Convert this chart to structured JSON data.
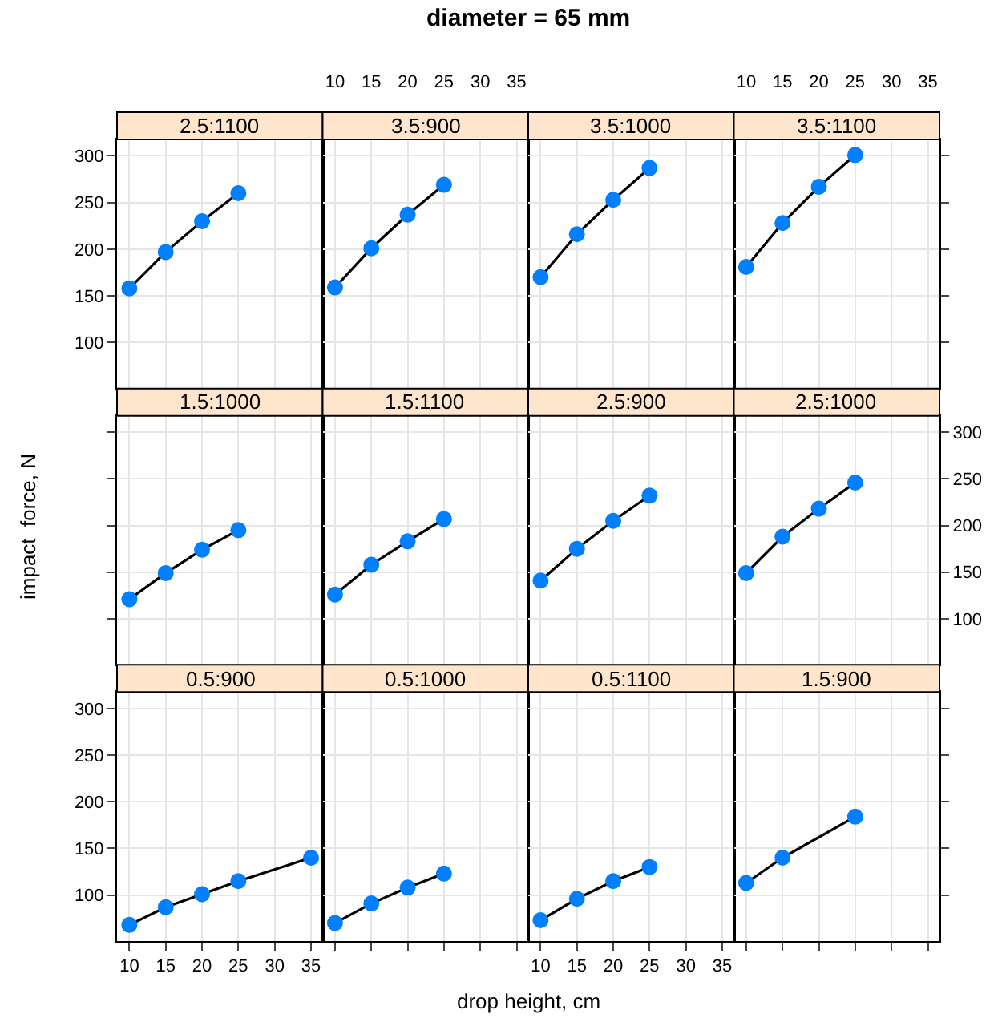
{
  "chart_data": [
    {
      "type": "other",
      "title": "diameter = 65 mm",
      "xlabel": "drop height, cm",
      "ylabel": "impact  force, N"
    },
    {
      "type": "line",
      "title": "2.5:1100",
      "x": [
        10,
        15,
        20,
        25
      ],
      "series": [
        {
          "color": "#0080ff",
          "values": [
            158,
            197,
            230,
            260
          ]
        }
      ],
      "xlim": [
        8.3,
        36.6
      ],
      "ylim": [
        50.7,
        317.6
      ],
      "xticks": [
        10,
        15,
        20,
        25,
        30,
        35
      ],
      "yticks": [
        100,
        150,
        200,
        250,
        300
      ],
      "grid": true,
      "marker": "circle",
      "tick_labels": "y"
    },
    {
      "type": "line",
      "title": "3.5:900",
      "x": [
        10,
        15,
        20,
        25
      ],
      "series": [
        {
          "color": "#0080ff",
          "values": [
            159,
            201,
            237,
            269
          ]
        }
      ],
      "xlim": [
        8.3,
        36.6
      ],
      "ylim": [
        50.7,
        317.6
      ],
      "xticks": [
        10,
        15,
        20,
        25,
        30,
        35
      ],
      "yticks": [
        100,
        150,
        200,
        250,
        300
      ],
      "grid": true,
      "marker": "circle",
      "tick_labels": "x"
    },
    {
      "type": "line",
      "title": "3.5:1000",
      "x": [
        10,
        15,
        20,
        25
      ],
      "series": [
        {
          "color": "#0080ff",
          "values": [
            170,
            216,
            253,
            287
          ]
        }
      ],
      "xlim": [
        8.3,
        36.6
      ],
      "ylim": [
        50.7,
        317.6
      ],
      "xticks": [
        10,
        15,
        20,
        25,
        30,
        35
      ],
      "yticks": [
        100,
        150,
        200,
        250,
        300
      ],
      "grid": true,
      "marker": "circle",
      "tick_labels": false
    },
    {
      "type": "line",
      "title": "3.5:1100",
      "x": [
        10,
        15,
        20,
        25
      ],
      "series": [
        {
          "color": "#0080ff",
          "values": [
            181,
            228,
            267,
            301
          ]
        }
      ],
      "xlim": [
        8.3,
        36.6
      ],
      "ylim": [
        50.7,
        317.6
      ],
      "xticks": [
        10,
        15,
        20,
        25,
        30,
        35
      ],
      "yticks": [
        100,
        150,
        200,
        250,
        300
      ],
      "grid": true,
      "marker": "circle",
      "tick_labels": "x"
    },
    {
      "type": "line",
      "title": "1.5:1000",
      "x": [
        10,
        15,
        20,
        25
      ],
      "series": [
        {
          "color": "#0080ff",
          "values": [
            121,
            149,
            174,
            195
          ]
        }
      ],
      "xlim": [
        8.3,
        36.6
      ],
      "ylim": [
        50.7,
        317.6
      ],
      "xticks": [
        10,
        15,
        20,
        25,
        30,
        35
      ],
      "yticks": [
        100,
        150,
        200,
        250,
        300
      ],
      "grid": true,
      "marker": "circle",
      "tick_labels": false
    },
    {
      "type": "line",
      "title": "1.5:1100",
      "x": [
        10,
        15,
        20,
        25
      ],
      "series": [
        {
          "color": "#0080ff",
          "values": [
            126,
            158,
            183,
            207
          ]
        }
      ],
      "xlim": [
        8.3,
        36.6
      ],
      "ylim": [
        50.7,
        317.6
      ],
      "xticks": [
        10,
        15,
        20,
        25,
        30,
        35
      ],
      "yticks": [
        100,
        150,
        200,
        250,
        300
      ],
      "grid": true,
      "marker": "circle",
      "tick_labels": false
    },
    {
      "type": "line",
      "title": "2.5:900",
      "x": [
        10,
        15,
        20,
        25
      ],
      "series": [
        {
          "color": "#0080ff",
          "values": [
            141,
            175,
            205,
            232
          ]
        }
      ],
      "xlim": [
        8.3,
        36.6
      ],
      "ylim": [
        50.7,
        317.6
      ],
      "xticks": [
        10,
        15,
        20,
        25,
        30,
        35
      ],
      "yticks": [
        100,
        150,
        200,
        250,
        300
      ],
      "grid": true,
      "marker": "circle",
      "tick_labels": false
    },
    {
      "type": "line",
      "title": "2.5:1000",
      "x": [
        10,
        15,
        20,
        25
      ],
      "series": [
        {
          "color": "#0080ff",
          "values": [
            149,
            188,
            218,
            246
          ]
        }
      ],
      "xlim": [
        8.3,
        36.6
      ],
      "ylim": [
        50.7,
        317.6
      ],
      "xticks": [
        10,
        15,
        20,
        25,
        30,
        35
      ],
      "yticks": [
        100,
        150,
        200,
        250,
        300
      ],
      "grid": true,
      "marker": "circle",
      "tick_labels": "y"
    },
    {
      "type": "line",
      "title": "0.5:900",
      "x": [
        10,
        15,
        20,
        25,
        35
      ],
      "series": [
        {
          "color": "#0080ff",
          "values": [
            68,
            87,
            101,
            115,
            140
          ]
        }
      ],
      "xlim": [
        8.3,
        36.6
      ],
      "ylim": [
        50.7,
        317.6
      ],
      "xticks": [
        10,
        15,
        20,
        25,
        30,
        35
      ],
      "yticks": [
        100,
        150,
        200,
        250,
        300
      ],
      "grid": true,
      "marker": "circle"
    },
    {
      "type": "line",
      "title": "0.5:1000",
      "x": [
        10,
        15,
        20,
        25
      ],
      "series": [
        {
          "color": "#0080ff",
          "values": [
            70,
            91,
            108,
            123
          ]
        }
      ],
      "xlim": [
        8.3,
        36.6
      ],
      "ylim": [
        50.7,
        317.6
      ],
      "xticks": [
        10,
        15,
        20,
        25,
        30,
        35
      ],
      "yticks": [
        100,
        150,
        200,
        250,
        300
      ],
      "grid": true,
      "marker": "circle",
      "tick_labels": false
    },
    {
      "type": "line",
      "title": "0.5:1100",
      "x": [
        10,
        15,
        20,
        25
      ],
      "series": [
        {
          "color": "#0080ff",
          "values": [
            73,
            96,
            115,
            130
          ]
        }
      ],
      "xlim": [
        8.3,
        36.6
      ],
      "ylim": [
        50.7,
        317.6
      ],
      "xticks": [
        10,
        15,
        20,
        25,
        30,
        35
      ],
      "yticks": [
        100,
        150,
        200,
        250,
        300
      ],
      "grid": true,
      "marker": "circle",
      "tick_labels": "x"
    },
    {
      "type": "line",
      "title": "1.5:900",
      "x": [
        10,
        15,
        25
      ],
      "series": [
        {
          "color": "#0080ff",
          "values": [
            113,
            140,
            184
          ]
        }
      ],
      "xlim": [
        8.3,
        36.6
      ],
      "ylim": [
        50.7,
        317.6
      ],
      "xticks": [
        10,
        15,
        20,
        25,
        30,
        35
      ],
      "yticks": [
        100,
        150,
        200,
        250,
        300
      ],
      "grid": true,
      "marker": "circle",
      "tick_labels": false
    }
  ]
}
